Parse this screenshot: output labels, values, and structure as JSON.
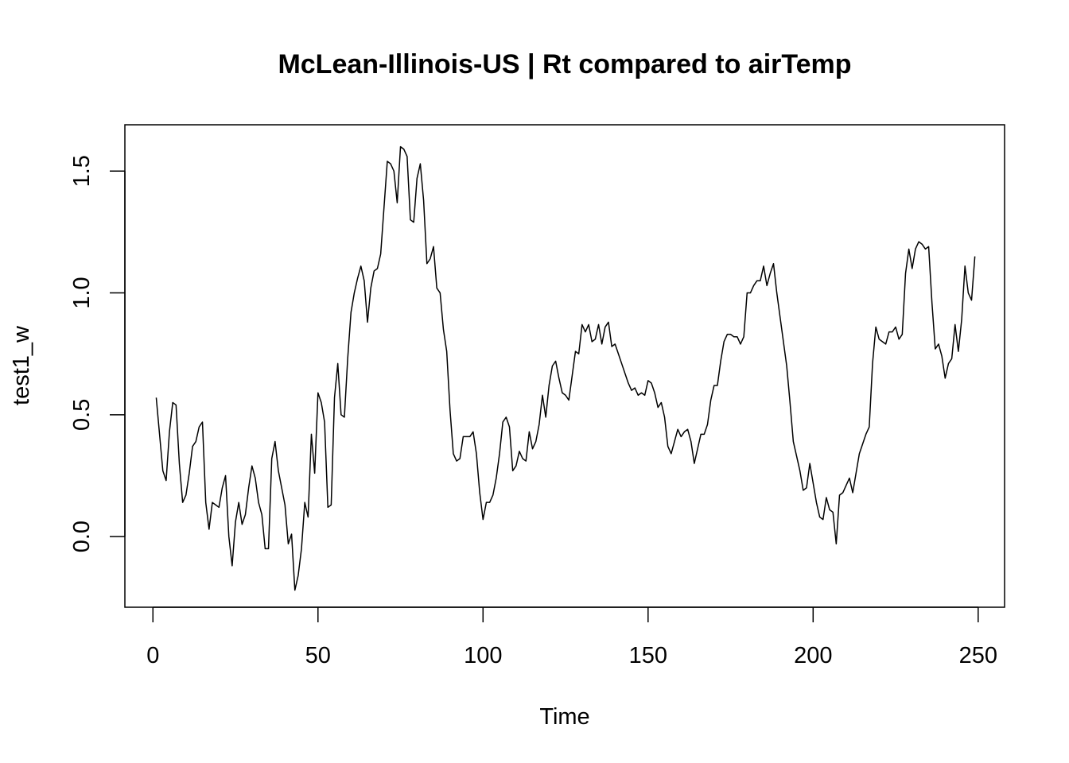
{
  "chart_data": {
    "type": "line",
    "title": "McLean-Illinois-US | Rt compared to airTemp",
    "xlabel": "Time",
    "ylabel": "test1_w",
    "xlim": [
      -8.5,
      258
    ],
    "ylim": [
      -0.29,
      1.69
    ],
    "x_ticks": [
      0,
      50,
      100,
      150,
      200,
      250
    ],
    "y_ticks": [
      0.0,
      0.5,
      1.0,
      1.5
    ],
    "x_tick_labels": [
      "0",
      "50",
      "100",
      "150",
      "200",
      "250"
    ],
    "y_tick_labels": [
      "0.0",
      "0.5",
      "1.0",
      "1.5"
    ],
    "grid": false,
    "line_color": "#000000",
    "series": [
      {
        "x_start": 1,
        "x_step": 1,
        "values": [
          0.57,
          0.42,
          0.27,
          0.23,
          0.43,
          0.55,
          0.54,
          0.3,
          0.14,
          0.17,
          0.26,
          0.37,
          0.39,
          0.45,
          0.47,
          0.14,
          0.03,
          0.14,
          0.13,
          0.12,
          0.2,
          0.25,
          0.0,
          -0.12,
          0.06,
          0.14,
          0.05,
          0.09,
          0.2,
          0.29,
          0.24,
          0.14,
          0.09,
          -0.05,
          -0.05,
          0.32,
          0.39,
          0.27,
          0.2,
          0.13,
          -0.03,
          0.01,
          -0.22,
          -0.16,
          -0.05,
          0.14,
          0.08,
          0.42,
          0.26,
          0.59,
          0.55,
          0.47,
          0.12,
          0.13,
          0.57,
          0.71,
          0.5,
          0.49,
          0.73,
          0.92,
          1.0,
          1.06,
          1.11,
          1.05,
          0.88,
          1.02,
          1.09,
          1.1,
          1.16,
          1.35,
          1.54,
          1.53,
          1.5,
          1.37,
          1.6,
          1.59,
          1.56,
          1.3,
          1.29,
          1.47,
          1.53,
          1.38,
          1.12,
          1.14,
          1.19,
          1.02,
          1.0,
          0.85,
          0.76,
          0.52,
          0.34,
          0.31,
          0.32,
          0.41,
          0.41,
          0.41,
          0.43,
          0.34,
          0.18,
          0.07,
          0.14,
          0.14,
          0.17,
          0.24,
          0.34,
          0.47,
          0.49,
          0.45,
          0.27,
          0.29,
          0.35,
          0.32,
          0.31,
          0.43,
          0.36,
          0.39,
          0.46,
          0.58,
          0.49,
          0.62,
          0.7,
          0.72,
          0.65,
          0.59,
          0.58,
          0.56,
          0.66,
          0.76,
          0.75,
          0.87,
          0.84,
          0.87,
          0.8,
          0.81,
          0.87,
          0.79,
          0.86,
          0.88,
          0.78,
          0.79,
          0.75,
          0.71,
          0.67,
          0.63,
          0.6,
          0.61,
          0.58,
          0.59,
          0.58,
          0.64,
          0.63,
          0.59,
          0.53,
          0.55,
          0.49,
          0.37,
          0.34,
          0.39,
          0.44,
          0.41,
          0.43,
          0.44,
          0.39,
          0.3,
          0.36,
          0.42,
          0.42,
          0.46,
          0.56,
          0.62,
          0.62,
          0.72,
          0.8,
          0.83,
          0.83,
          0.82,
          0.82,
          0.79,
          0.82,
          1.0,
          1.0,
          1.03,
          1.05,
          1.05,
          1.11,
          1.03,
          1.08,
          1.12,
          1.0,
          0.9,
          0.8,
          0.7,
          0.55,
          0.39,
          0.33,
          0.27,
          0.19,
          0.2,
          0.3,
          0.22,
          0.14,
          0.08,
          0.07,
          0.16,
          0.11,
          0.1,
          -0.03,
          0.17,
          0.18,
          0.21,
          0.24,
          0.18,
          0.26,
          0.34,
          0.38,
          0.42,
          0.45,
          0.71,
          0.86,
          0.81,
          0.8,
          0.79,
          0.84,
          0.84,
          0.86,
          0.81,
          0.83,
          1.08,
          1.18,
          1.1,
          1.18,
          1.21,
          1.2,
          1.18,
          1.19,
          0.96,
          0.77,
          0.79,
          0.74,
          0.65,
          0.71,
          0.73,
          0.87,
          0.76,
          0.89,
          1.11,
          1.0,
          0.97,
          1.15
        ]
      }
    ]
  }
}
